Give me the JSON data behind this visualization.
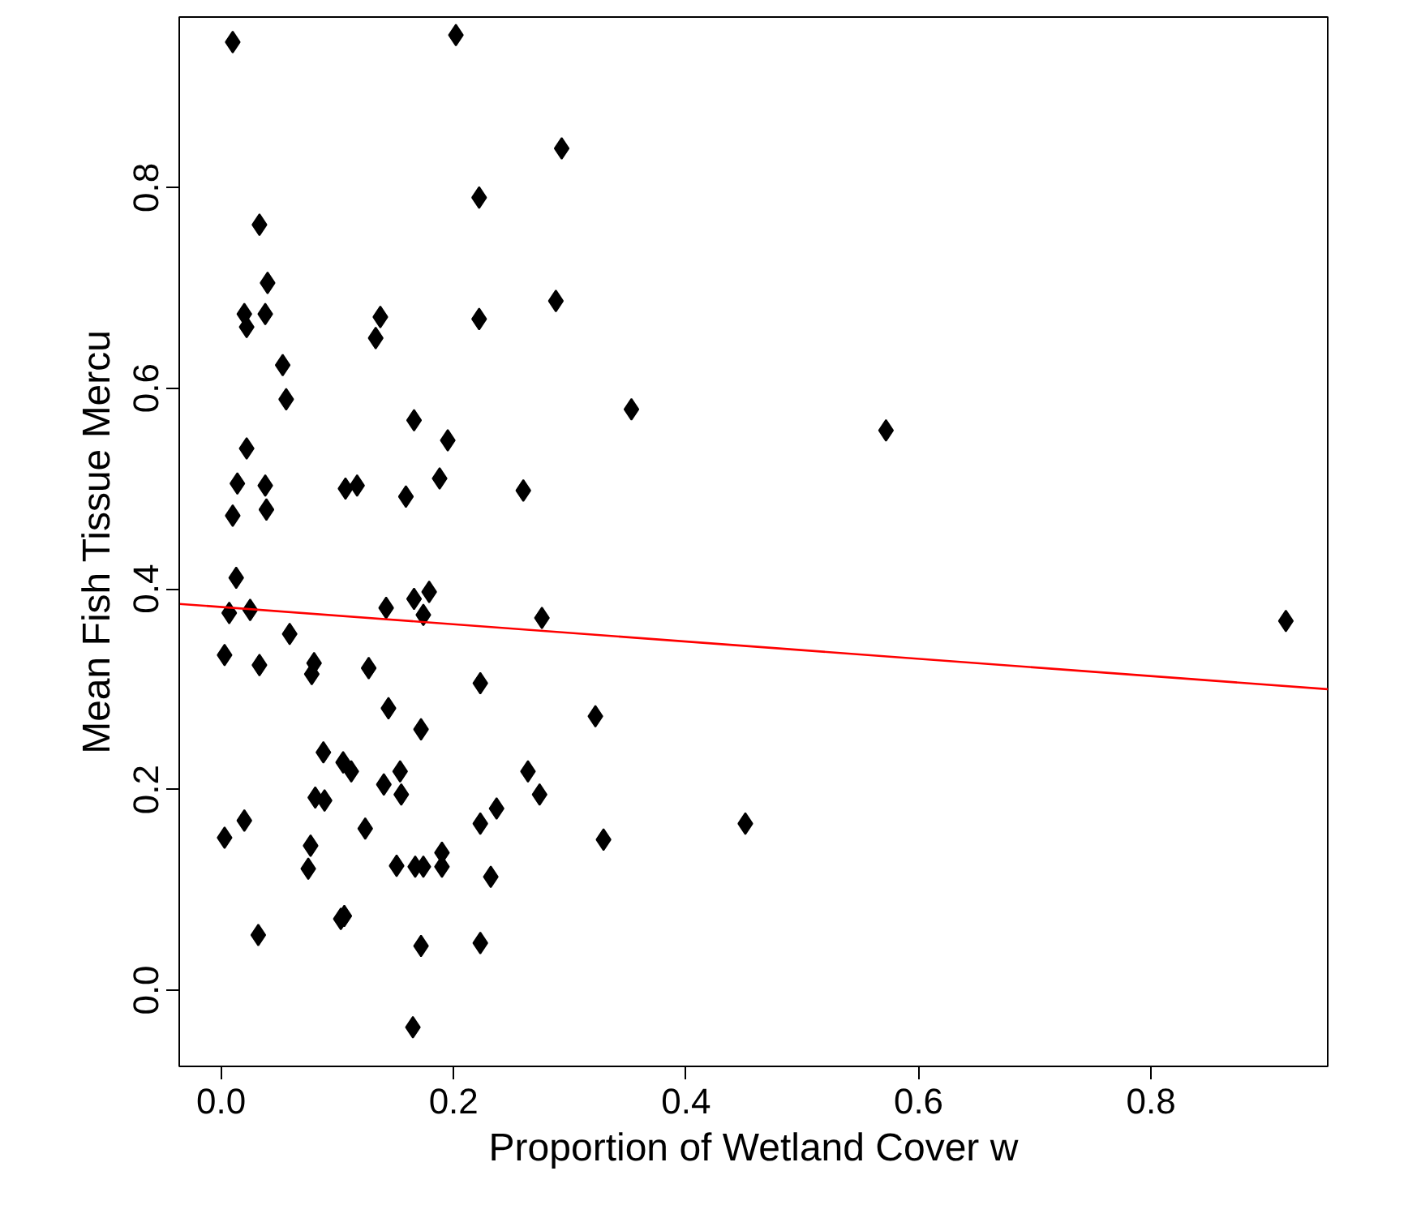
{
  "chart_data": {
    "type": "scatter",
    "xlabel": "Proportion of Wetland Cover w",
    "ylabel": "Mean Fish Tissue Mercu",
    "xlim": [
      -0.036,
      0.952
    ],
    "ylim": [
      -0.076,
      0.97
    ],
    "xticks": [
      {
        "value": 0,
        "label": "0.0"
      },
      {
        "value": 0.2,
        "label": "0.2"
      },
      {
        "value": 0.4,
        "label": "0.4"
      },
      {
        "value": 0.6,
        "label": "0.6"
      },
      {
        "value": 0.8,
        "label": "0.8"
      }
    ],
    "yticks": [
      {
        "value": 0,
        "label": "0.0"
      },
      {
        "value": 0.2,
        "label": "0.2"
      },
      {
        "value": 0.4,
        "label": "0.4"
      },
      {
        "value": 0.6,
        "label": "0.6"
      },
      {
        "value": 0.8,
        "label": "0.8"
      }
    ],
    "grid": false,
    "marker": "diamond",
    "series": [
      {
        "color": "#000000",
        "x": [
          0.01,
          0.202,
          0.293,
          0.222,
          0.033,
          0.04,
          0.288,
          0.02,
          0.038,
          0.137,
          0.222,
          0.022,
          0.133,
          0.053,
          0.056,
          0.353,
          0.572,
          0.166,
          0.195,
          0.022,
          0.188,
          0.014,
          0.038,
          0.117,
          0.107,
          0.26,
          0.159,
          0.01,
          0.039,
          0.013,
          0.179,
          0.166,
          0.142,
          0.025,
          0.007,
          0.174,
          0.276,
          0.916,
          0.059,
          0.003,
          0.08,
          0.033,
          0.127,
          0.078,
          0.223,
          0.322,
          0.144,
          0.172,
          0.088,
          0.264,
          0.154,
          0.105,
          0.112,
          0.14,
          0.155,
          0.274,
          0.081,
          0.089,
          0.237,
          0.223,
          0.451,
          0.124,
          0.02,
          0.003,
          0.329,
          0.077,
          0.075,
          0.151,
          0.167,
          0.19,
          0.19,
          0.174,
          0.232,
          0.032,
          0.106,
          0.103,
          0.172,
          0.223,
          0.165
        ],
        "values": [
          0.945,
          0.952,
          0.839,
          0.79,
          0.763,
          0.705,
          0.687,
          0.674,
          0.674,
          0.671,
          0.669,
          0.661,
          0.65,
          0.623,
          0.589,
          0.579,
          0.558,
          0.568,
          0.548,
          0.54,
          0.51,
          0.505,
          0.503,
          0.503,
          0.5,
          0.498,
          0.492,
          0.473,
          0.479,
          0.411,
          0.397,
          0.39,
          0.381,
          0.379,
          0.376,
          0.374,
          0.371,
          0.368,
          0.355,
          0.334,
          0.326,
          0.324,
          0.321,
          0.315,
          0.306,
          0.273,
          0.281,
          0.26,
          0.237,
          0.218,
          0.218,
          0.227,
          0.218,
          0.205,
          0.195,
          0.195,
          0.192,
          0.189,
          0.181,
          0.166,
          0.166,
          0.161,
          0.169,
          0.152,
          0.15,
          0.144,
          0.121,
          0.124,
          0.123,
          0.137,
          0.123,
          0.123,
          0.113,
          0.055,
          0.074,
          0.071,
          0.044,
          0.047,
          -0.037
        ]
      },
      {
        "type": "line",
        "color": "#ff0000",
        "x": [
          -0.036,
          0.952
        ],
        "values": [
          0.385,
          0.3
        ],
        "marker": "none",
        "line_style": "solid"
      }
    ]
  }
}
